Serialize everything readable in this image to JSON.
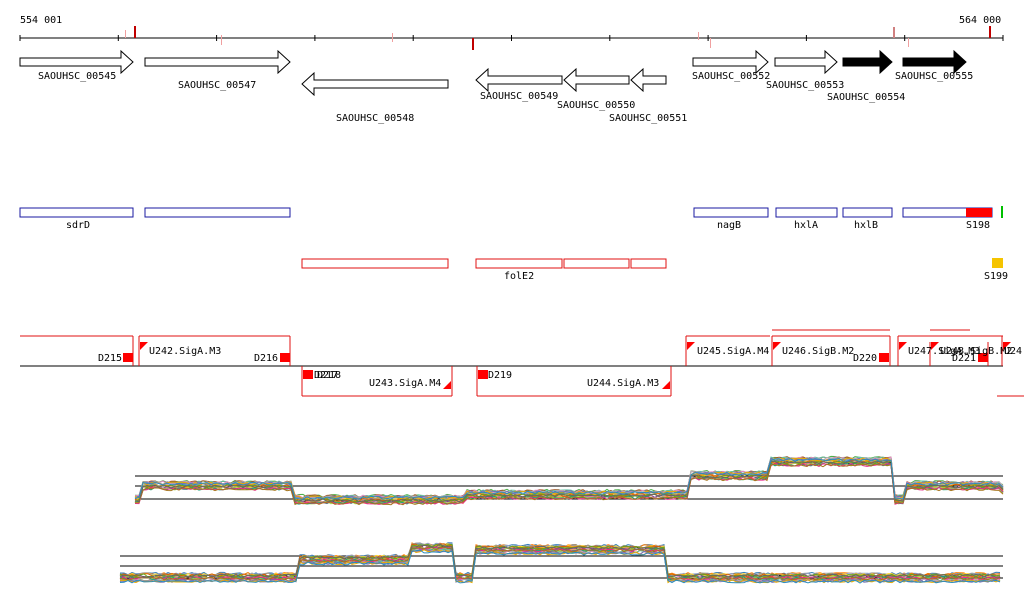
{
  "ruler": {
    "start_label": "554 001",
    "end_label": "564 000"
  },
  "genes": [
    {
      "id": "SAOUHSC_00545",
      "strand": "+",
      "filled": false
    },
    {
      "id": "SAOUHSC_00547",
      "strand": "+",
      "filled": false
    },
    {
      "id": "SAOUHSC_00548",
      "strand": "-",
      "filled": false
    },
    {
      "id": "SAOUHSC_00549",
      "strand": "-",
      "filled": false
    },
    {
      "id": "SAOUHSC_00550",
      "strand": "-",
      "filled": false
    },
    {
      "id": "SAOUHSC_00551",
      "strand": "-",
      "filled": false
    },
    {
      "id": "SAOUHSC_00552",
      "strand": "+",
      "filled": false
    },
    {
      "id": "SAOUHSC_00553",
      "strand": "+",
      "filled": false
    },
    {
      "id": "SAOUHSC_00554",
      "strand": "+",
      "filled": true
    },
    {
      "id": "SAOUHSC_00555",
      "strand": "+",
      "filled": true
    }
  ],
  "blue_features": [
    {
      "label": "sdrD"
    },
    {
      "label": ""
    },
    {
      "label": "nagB"
    },
    {
      "label": "hxlA"
    },
    {
      "label": "hxlB"
    },
    {
      "label": "S198"
    }
  ],
  "red_features": [
    {
      "label": ""
    },
    {
      "label": "folE2"
    },
    {
      "label": ""
    },
    {
      "label": ""
    }
  ],
  "small_feature": {
    "label": "S199",
    "color": "#f5c400"
  },
  "segments_top": [
    {
      "label": "D215"
    },
    {
      "label": "U242.SigA.M3"
    },
    {
      "label": "D216"
    },
    {
      "label": "U245.SigA.M4"
    },
    {
      "label": "U246.SigB.M2"
    },
    {
      "label": "D220"
    },
    {
      "label": "U247.SigA.M3"
    },
    {
      "label": "U248.SigB.M2"
    },
    {
      "label": "D221"
    },
    {
      "label": "U24"
    }
  ],
  "segments_bottom": [
    {
      "label": "D217"
    },
    {
      "label": "D218"
    },
    {
      "label": "U243.SigA.M4"
    },
    {
      "label": "D219"
    },
    {
      "label": "U244.SigA.M3"
    }
  ],
  "colors": {
    "gene_stroke": "#000000",
    "blue": "#1a1aa0",
    "red": "#e01010",
    "strong_red": "#ff0000",
    "green": "#00c000"
  }
}
